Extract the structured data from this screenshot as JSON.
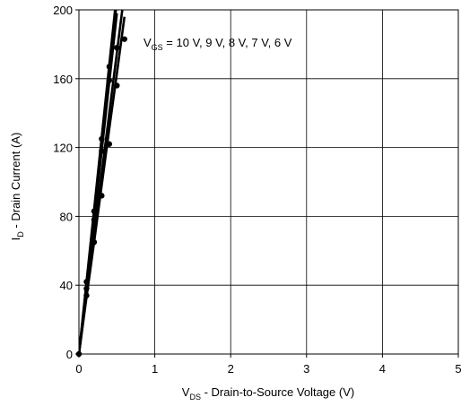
{
  "chart_data": {
    "type": "line",
    "xlim": [
      0,
      5
    ],
    "ylim": [
      0,
      200
    ],
    "x_ticks": [
      0,
      1,
      2,
      3,
      4,
      5
    ],
    "y_ticks": [
      0,
      40,
      80,
      120,
      160,
      200
    ],
    "grid": true,
    "legend": "none",
    "line_color": "#000000",
    "ylabel": {
      "main": "I",
      "sub": "D",
      "rest": " - Drain Current (A)"
    },
    "xlabel": {
      "main": "V",
      "sub": "DS",
      "rest": " - Drain-to-Source Voltage (V)"
    },
    "annotation": {
      "main": "V",
      "sub": "GS",
      "rest": " = 10 V, 9 V, 8 V, 7 V, 6 V"
    },
    "series": [
      {
        "x": [
          0,
          0.1,
          0.2,
          0.3,
          0.4,
          0.5,
          0.6
        ],
        "y": [
          0,
          40,
          82,
          124,
          165,
          205,
          246
        ]
      },
      {
        "x": [
          0,
          0.1,
          0.2,
          0.3,
          0.4,
          0.5
        ],
        "y": [
          0,
          38,
          78,
          118,
          158,
          198
        ]
      },
      {
        "x": [
          0,
          0.1,
          0.2,
          0.3,
          0.4,
          0.5,
          0.6
        ],
        "y": [
          0,
          35,
          70,
          105,
          140,
          175,
          210
        ]
      },
      {
        "x": [
          0,
          0.1,
          0.2,
          0.3,
          0.4,
          0.5,
          0.6
        ],
        "y": [
          0,
          33,
          65,
          98,
          131,
          163,
          196
        ]
      },
      {
        "x": [
          0,
          0.1,
          0.2,
          0.3,
          0.4,
          0.5,
          0.6
        ],
        "y": [
          0,
          42,
          84,
          126,
          168,
          210,
          252
        ]
      }
    ],
    "points": [
      {
        "x": 0.1,
        "y": 42
      },
      {
        "x": 0.1,
        "y": 38
      },
      {
        "x": 0.1,
        "y": 34
      },
      {
        "x": 0.2,
        "y": 83
      },
      {
        "x": 0.2,
        "y": 78
      },
      {
        "x": 0.2,
        "y": 65
      },
      {
        "x": 0.3,
        "y": 125
      },
      {
        "x": 0.3,
        "y": 118
      },
      {
        "x": 0.3,
        "y": 92
      },
      {
        "x": 0.4,
        "y": 167
      },
      {
        "x": 0.4,
        "y": 159
      },
      {
        "x": 0.4,
        "y": 122
      },
      {
        "x": 0.5,
        "y": 178
      },
      {
        "x": 0.5,
        "y": 156
      },
      {
        "x": 0.6,
        "y": 183
      }
    ]
  }
}
